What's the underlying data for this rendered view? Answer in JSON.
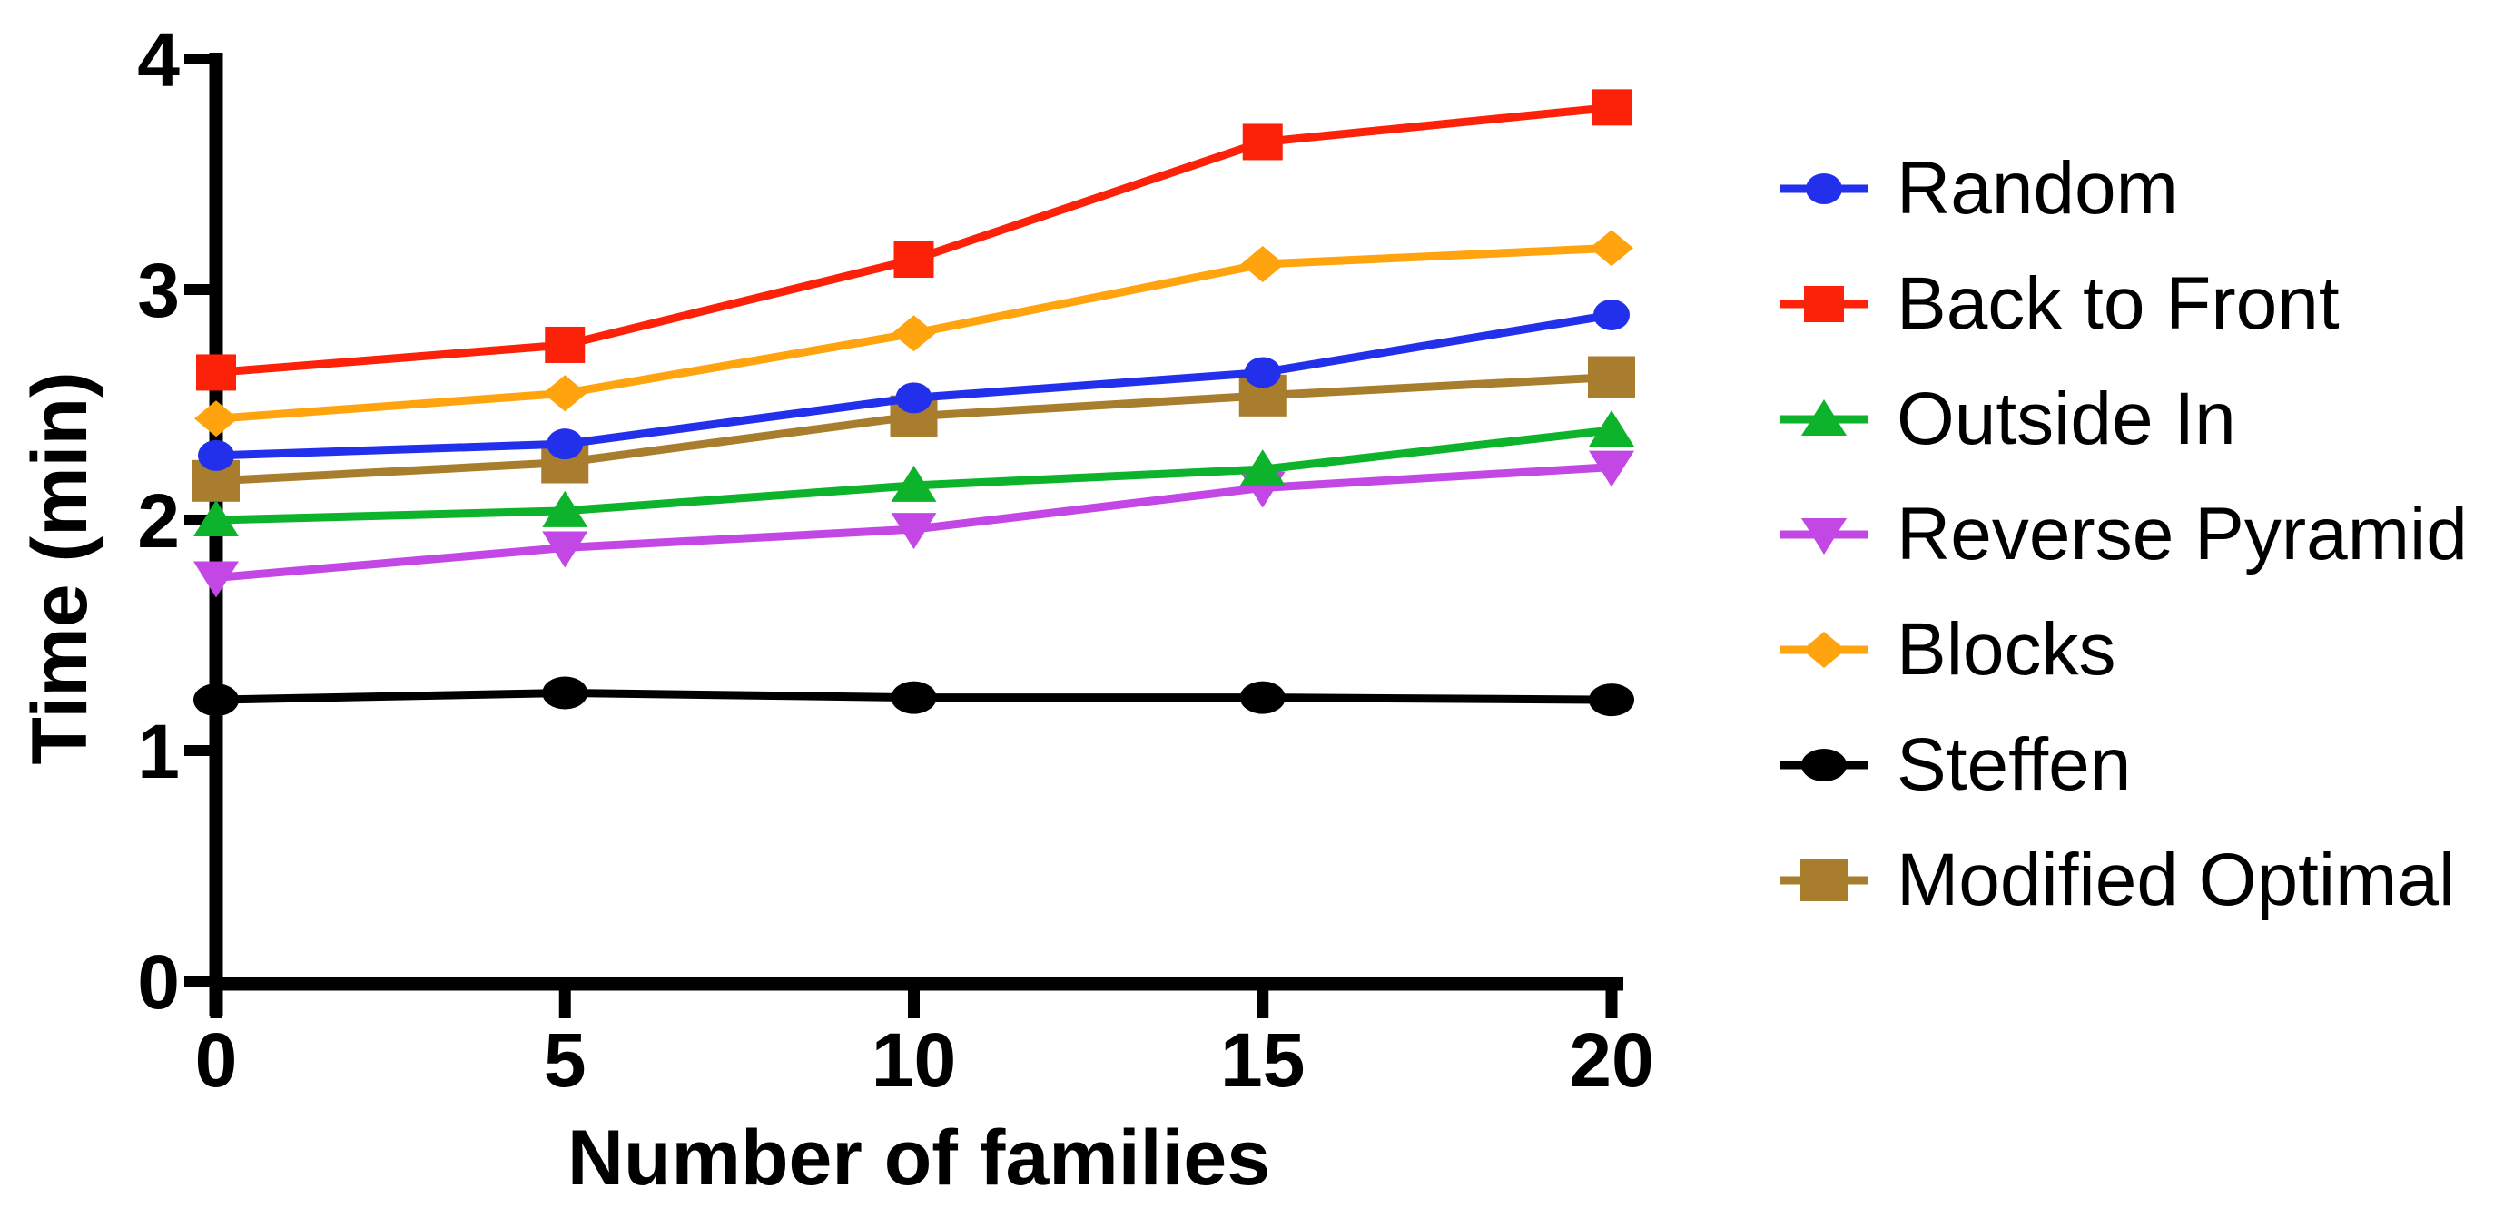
{
  "figure": {
    "background": "#ffffff"
  },
  "chart_data": {
    "type": "line",
    "title": "",
    "xlabel": "Number of families",
    "ylabel": "Time (min)",
    "x": [
      0,
      5,
      10,
      15,
      20
    ],
    "x_ticks": [
      0,
      5,
      10,
      15,
      20
    ],
    "y_ticks": [
      0,
      1,
      2,
      3,
      4
    ],
    "xlim": [
      0,
      20
    ],
    "ylim": [
      0,
      4
    ],
    "grid": false,
    "legend_position": "right",
    "series": [
      {
        "name": "Random",
        "color": "#2230ec",
        "marker": "circle",
        "values": [
          2.28,
          2.33,
          2.53,
          2.64,
          2.89
        ]
      },
      {
        "name": "Back to Front",
        "color": "#fb2209",
        "marker": "square",
        "values": [
          2.64,
          2.76,
          3.13,
          3.64,
          3.79
        ]
      },
      {
        "name": "Outside In",
        "color": "#0db32a",
        "marker": "triangle-up",
        "values": [
          2.0,
          2.04,
          2.15,
          2.22,
          2.39
        ]
      },
      {
        "name": "Reverse Pyramid",
        "color": "#c247e4",
        "marker": "triangle-down",
        "values": [
          1.75,
          1.88,
          1.96,
          2.14,
          2.23
        ]
      },
      {
        "name": "Blocks",
        "color": "#ffa30f",
        "marker": "diamond",
        "values": [
          2.44,
          2.55,
          2.81,
          3.11,
          3.18
        ]
      },
      {
        "name": "Steffen",
        "color": "#000000",
        "marker": "circle",
        "values": [
          1.22,
          1.25,
          1.23,
          1.23,
          1.22
        ]
      },
      {
        "name": "Modified Optimal",
        "color": "#a87d2e",
        "marker": "square",
        "values": [
          2.17,
          2.25,
          2.45,
          2.54,
          2.62
        ]
      }
    ]
  }
}
